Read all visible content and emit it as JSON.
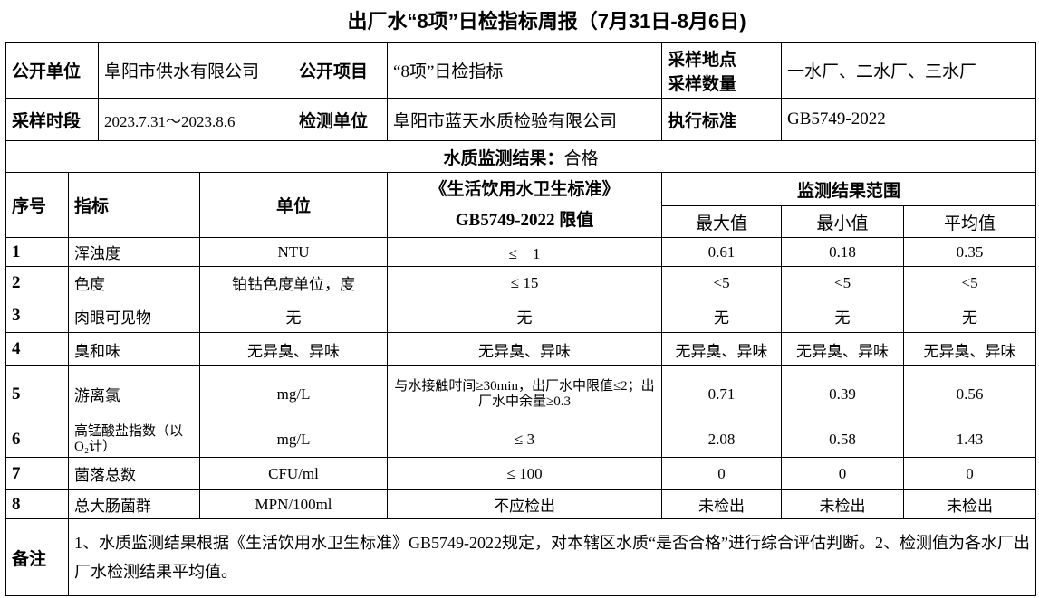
{
  "title": "出厂水“8项”日检指标周报（7月31日-8月6日)",
  "info": {
    "unit_label": "公开单位",
    "unit_value": "阜阳市供水有限公司",
    "item_label": "公开项目",
    "item_value": "“8项”日检指标",
    "site_label_1": "采样地点",
    "site_label_2": "采样数量",
    "site_value": "一水厂、二水厂、三水厂",
    "period_label": "采样时段",
    "period_value": "2023.7.31～2023.8.6",
    "lab_label": "检测单位",
    "lab_value": "阜阳市蓝天水质检验有限公司",
    "std_label": "执行标准",
    "std_value": "GB5749-2022"
  },
  "result": {
    "label": "水质监测结果：",
    "value": "合格"
  },
  "headers": {
    "no": "序号",
    "indicator": "指标",
    "unit": "单位",
    "limit_1": "《生活饮用水卫生标准》",
    "limit_2": "GB5749-2022 限值",
    "range": "监测结果范围",
    "max": "最大值",
    "min": "最小值",
    "avg": "平均值"
  },
  "rows": [
    {
      "no": "1",
      "indicator": "浑浊度",
      "unit": "NTU",
      "limit": "≤　1",
      "max": "0.61",
      "min": "0.18",
      "avg": "0.35"
    },
    {
      "no": "2",
      "indicator": "色度",
      "unit": "铂钴色度单位，度",
      "limit": "≤ 15",
      "max": "<5",
      "min": "<5",
      "avg": "<5"
    },
    {
      "no": "3",
      "indicator": "肉眼可见物",
      "unit": "无",
      "limit": "无",
      "max": "无",
      "min": "无",
      "avg": "无"
    },
    {
      "no": "4",
      "indicator": "臭和味",
      "unit": "无异臭、异味",
      "limit": "无异臭、异味",
      "max": "无异臭、异味",
      "min": "无异臭、异味",
      "avg": "无异臭、异味"
    },
    {
      "no": "5",
      "indicator": "游离氯",
      "unit": "mg/L",
      "limit": "与水接触时间≥30min，出厂水中限值≤2；出厂水中余量≥0.3",
      "max": "0.71",
      "min": "0.39",
      "avg": "0.56"
    },
    {
      "no": "6",
      "indicator": "高锰酸盐指数（以O₂计）",
      "unit": "mg/L",
      "limit": "≤ 3",
      "max": "2.08",
      "min": "0.58",
      "avg": "1.43"
    },
    {
      "no": "7",
      "indicator": "菌落总数",
      "unit": "CFU/ml",
      "limit": "≤ 100",
      "max": "0",
      "min": "0",
      "avg": "0"
    },
    {
      "no": "8",
      "indicator": "总大肠菌群",
      "unit": "MPN/100ml",
      "limit": "不应检出",
      "max": "未检出",
      "min": "未检出",
      "avg": "未检出"
    }
  ],
  "remarks": {
    "label": "备注",
    "text": "1、水质监测结果根据《生活饮用水卫生标准》GB5749-2022规定，对本辖区水质“是否合格”进行综合评估判断。2、检测值为各水厂出厂水检测结果平均值。"
  }
}
